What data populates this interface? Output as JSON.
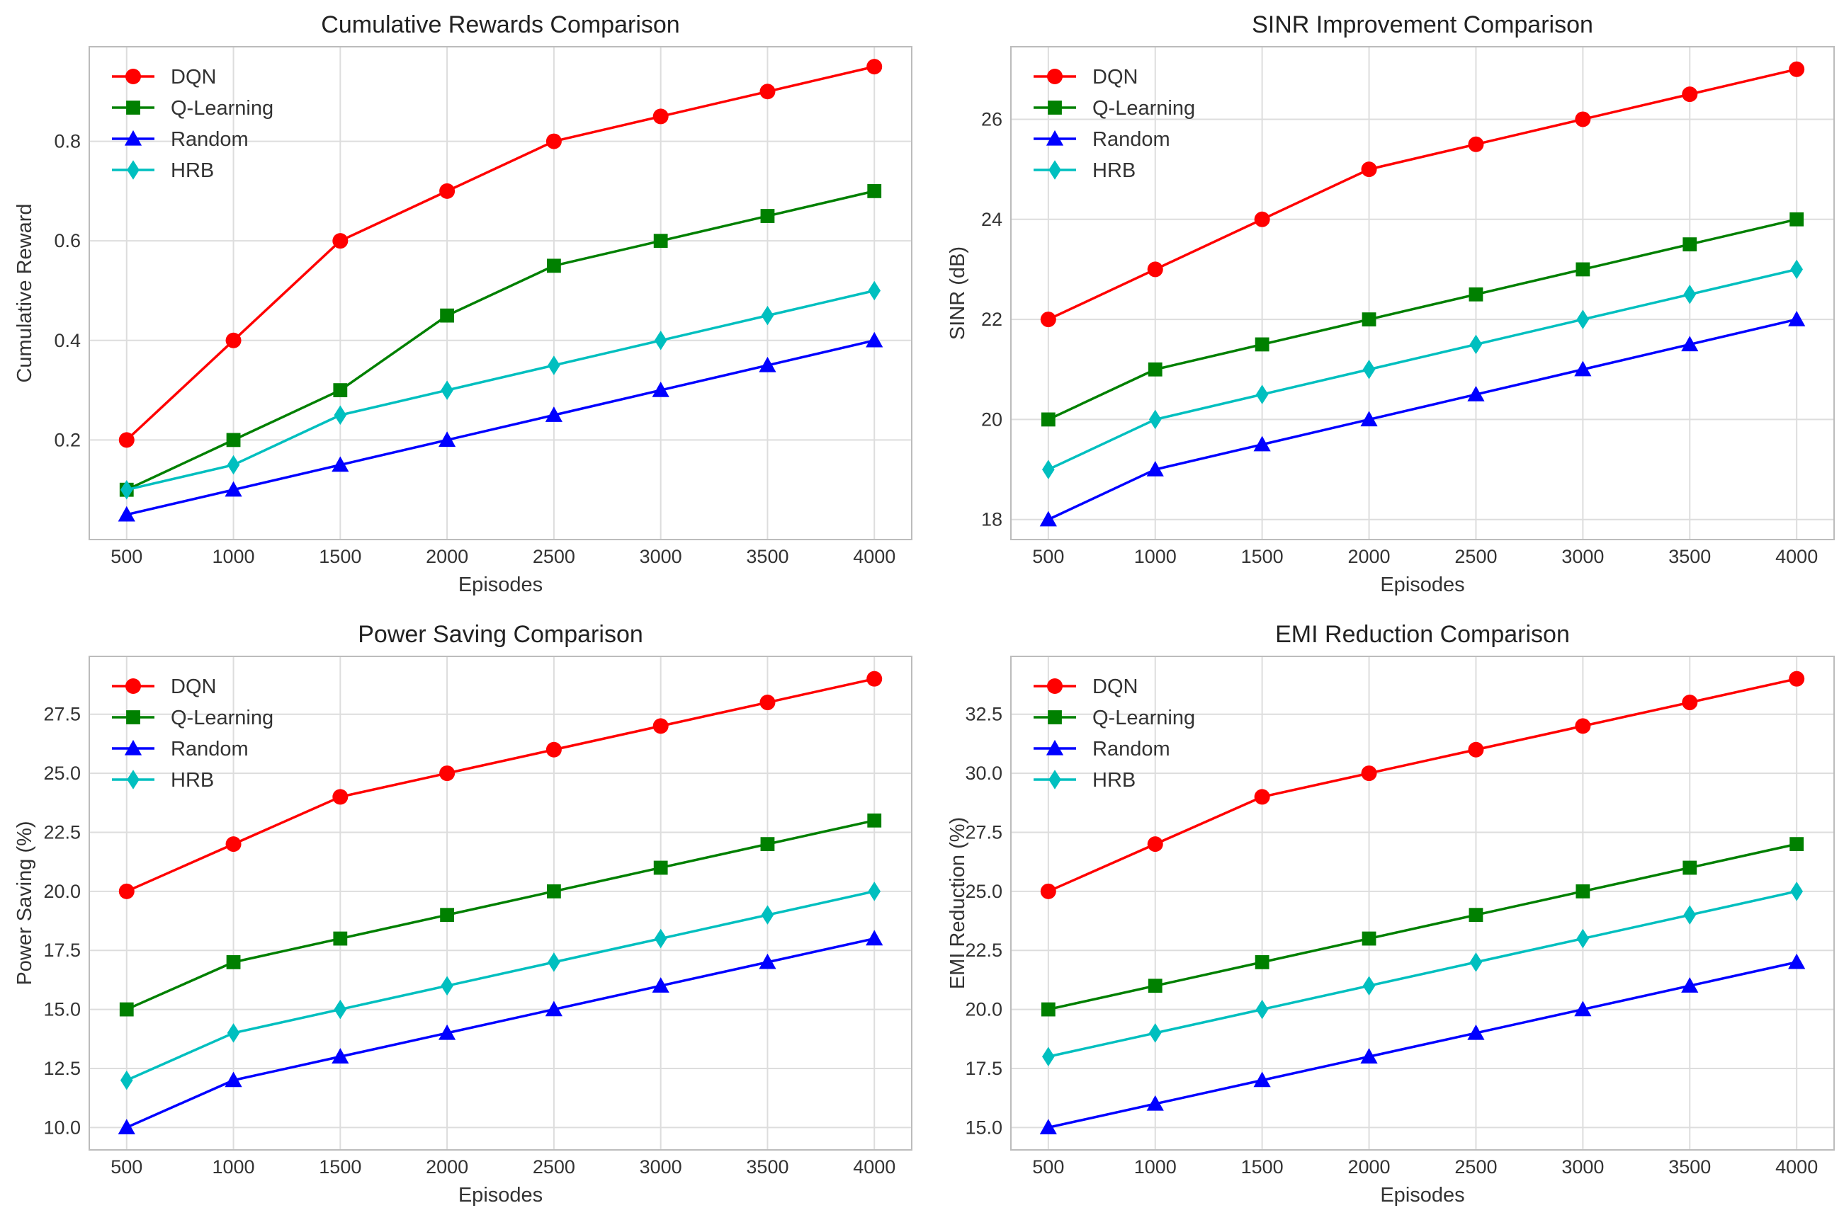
{
  "figure": {
    "background": "#ffffff"
  },
  "chart_data": [
    {
      "type": "line",
      "title": "Cumulative Rewards Comparison",
      "xlabel": "Episodes",
      "ylabel": "Cumulative Reward",
      "x": [
        500,
        1000,
        1500,
        2000,
        2500,
        3000,
        3500,
        4000
      ],
      "xticks": [
        "500",
        "1000",
        "1500",
        "2000",
        "2500",
        "3000",
        "3500",
        "4000"
      ],
      "ylim": [
        0.0,
        0.99
      ],
      "yticks": [
        0.2,
        0.4,
        0.6,
        0.8
      ],
      "ytick_labels": [
        "0.2",
        "0.4",
        "0.6",
        "0.8"
      ],
      "grid": true,
      "legend_position": "top-left",
      "series": [
        {
          "name": "DQN",
          "color": "#ff0000",
          "marker": "circle",
          "values": [
            0.2,
            0.4,
            0.6,
            0.7,
            0.8,
            0.85,
            0.9,
            0.95
          ]
        },
        {
          "name": "Q-Learning",
          "color": "#008000",
          "marker": "square",
          "values": [
            0.1,
            0.2,
            0.3,
            0.45,
            0.55,
            0.6,
            0.65,
            0.7
          ]
        },
        {
          "name": "Random",
          "color": "#0000ff",
          "marker": "triangle",
          "values": [
            0.05,
            0.1,
            0.15,
            0.2,
            0.25,
            0.3,
            0.35,
            0.4
          ]
        },
        {
          "name": "HRB",
          "color": "#00bfbf",
          "marker": "diamond",
          "values": [
            0.1,
            0.15,
            0.25,
            0.3,
            0.35,
            0.4,
            0.45,
            0.5
          ]
        }
      ]
    },
    {
      "type": "line",
      "title": "SINR Improvement Comparison",
      "xlabel": "Episodes",
      "ylabel": "SINR (dB)",
      "x": [
        500,
        1000,
        1500,
        2000,
        2500,
        3000,
        3500,
        4000
      ],
      "xticks": [
        "500",
        "1000",
        "1500",
        "2000",
        "2500",
        "3000",
        "3500",
        "4000"
      ],
      "ylim": [
        17.6,
        27.45
      ],
      "yticks": [
        18,
        20,
        22,
        24,
        26
      ],
      "ytick_labels": [
        "18",
        "20",
        "22",
        "24",
        "26"
      ],
      "grid": true,
      "legend_position": "top-left",
      "series": [
        {
          "name": "DQN",
          "color": "#ff0000",
          "marker": "circle",
          "values": [
            22,
            23,
            24,
            25,
            25.5,
            26,
            26.5,
            27
          ]
        },
        {
          "name": "Q-Learning",
          "color": "#008000",
          "marker": "square",
          "values": [
            20,
            21,
            21.5,
            22,
            22.5,
            23,
            23.5,
            24
          ]
        },
        {
          "name": "Random",
          "color": "#0000ff",
          "marker": "triangle",
          "values": [
            18,
            19,
            19.5,
            20,
            20.5,
            21,
            21.5,
            22
          ]
        },
        {
          "name": "HRB",
          "color": "#00bfbf",
          "marker": "diamond",
          "values": [
            19,
            20,
            20.5,
            21,
            21.5,
            22,
            22.5,
            23
          ]
        }
      ]
    },
    {
      "type": "line",
      "title": "Power Saving Comparison",
      "xlabel": "Episodes",
      "ylabel": "Power Saving (%)",
      "x": [
        500,
        1000,
        1500,
        2000,
        2500,
        3000,
        3500,
        4000
      ],
      "xticks": [
        "500",
        "1000",
        "1500",
        "2000",
        "2500",
        "3000",
        "3500",
        "4000"
      ],
      "ylim": [
        9.05,
        29.95
      ],
      "yticks": [
        10,
        12.5,
        15,
        17.5,
        20,
        22.5,
        25,
        27.5
      ],
      "ytick_labels": [
        "10.0",
        "12.5",
        "15.0",
        "17.5",
        "20.0",
        "22.5",
        "25.0",
        "27.5"
      ],
      "grid": true,
      "legend_position": "top-left",
      "series": [
        {
          "name": "DQN",
          "color": "#ff0000",
          "marker": "circle",
          "values": [
            20,
            22,
            24,
            25,
            26,
            27,
            28,
            29
          ]
        },
        {
          "name": "Q-Learning",
          "color": "#008000",
          "marker": "square",
          "values": [
            15,
            17,
            18,
            19,
            20,
            21,
            22,
            23
          ]
        },
        {
          "name": "Random",
          "color": "#0000ff",
          "marker": "triangle",
          "values": [
            10,
            12,
            13,
            14,
            15,
            16,
            17,
            18
          ]
        },
        {
          "name": "HRB",
          "color": "#00bfbf",
          "marker": "diamond",
          "values": [
            12,
            14,
            15,
            16,
            17,
            18,
            19,
            20
          ]
        }
      ]
    },
    {
      "type": "line",
      "title": "EMI Reduction Comparison",
      "xlabel": "Episodes",
      "ylabel": "EMI Reduction (%)",
      "x": [
        500,
        1000,
        1500,
        2000,
        2500,
        3000,
        3500,
        4000
      ],
      "xticks": [
        "500",
        "1000",
        "1500",
        "2000",
        "2500",
        "3000",
        "3500",
        "4000"
      ],
      "ylim": [
        14.05,
        34.95
      ],
      "yticks": [
        15,
        17.5,
        20,
        22.5,
        25,
        27.5,
        30,
        32.5
      ],
      "ytick_labels": [
        "15.0",
        "17.5",
        "20.0",
        "22.5",
        "25.0",
        "27.5",
        "30.0",
        "32.5"
      ],
      "grid": true,
      "legend_position": "top-left",
      "series": [
        {
          "name": "DQN",
          "color": "#ff0000",
          "marker": "circle",
          "values": [
            25,
            27,
            29,
            30,
            31,
            32,
            33,
            34
          ]
        },
        {
          "name": "Q-Learning",
          "color": "#008000",
          "marker": "square",
          "values": [
            20,
            21,
            22,
            23,
            24,
            25,
            26,
            27
          ]
        },
        {
          "name": "Random",
          "color": "#0000ff",
          "marker": "triangle",
          "values": [
            15,
            16,
            17,
            18,
            19,
            20,
            21,
            22
          ]
        },
        {
          "name": "HRB",
          "color": "#00bfbf",
          "marker": "diamond",
          "values": [
            18,
            19,
            20,
            21,
            22,
            23,
            24,
            25
          ]
        }
      ]
    }
  ]
}
